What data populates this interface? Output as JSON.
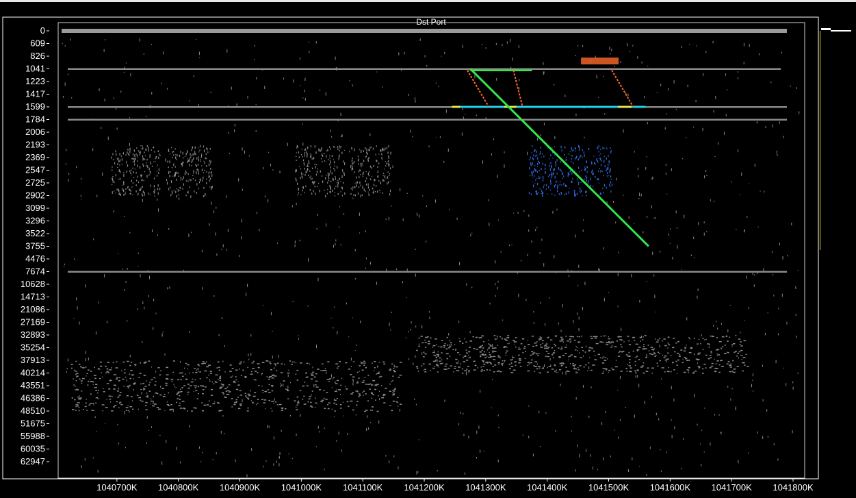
{
  "chart_data": {
    "type": "scatter",
    "title": "Dst Port",
    "xlabel": "",
    "ylabel": "",
    "x_ticks": [
      "1040700K",
      "1040800K",
      "1040900K",
      "1041000K",
      "1041100K",
      "1041200K",
      "1041300K",
      "1041400K",
      "1041500K",
      "1041600K",
      "1041700K",
      "1041800K"
    ],
    "xlim": [
      1040610,
      1041810
    ],
    "y_ticks": [
      "0",
      "609",
      "826",
      "1041",
      "1223",
      "1417",
      "1599",
      "1784",
      "2006",
      "2193",
      "2369",
      "2547",
      "2725",
      "2902",
      "3099",
      "3296",
      "3522",
      "3755",
      "4476",
      "7674",
      "10628",
      "14713",
      "21086",
      "27169",
      "32893",
      "35254",
      "37913",
      "40214",
      "43551",
      "46386",
      "48510",
      "51675",
      "55988",
      "60035",
      "62947"
    ],
    "y_scale": "port-rank (non-linear tick labels)",
    "grid": false,
    "legend": "none",
    "colors": {
      "background": "#000000",
      "frame": "#ffffff",
      "scan_points": "#8c8c8c",
      "diagonal_sweep": "#33e64d",
      "highlight_block": "#2e6be6",
      "orange_marks": "#ff6a2a",
      "cyan_marks": "#22d3ee",
      "yellow_marks": "#e8e84a",
      "side_bar": "#e6d21e"
    },
    "features": [
      {
        "kind": "dense band",
        "color": "gray",
        "y": "0",
        "x_range": [
          1040610,
          1041790
        ]
      },
      {
        "kind": "horizontal line",
        "color": "gray",
        "y": "1041",
        "x_range": [
          1040620,
          1041780
        ]
      },
      {
        "kind": "horizontal line",
        "color": "gray/cyan/yellow",
        "y": "1599",
        "x_range": [
          1040620,
          1041790
        ]
      },
      {
        "kind": "horizontal line",
        "color": "gray",
        "y": "1784",
        "x_range": [
          1040620,
          1041790
        ]
      },
      {
        "kind": "horizontal line",
        "color": "gray",
        "y": "7674",
        "x_range": [
          1040620,
          1041790
        ]
      },
      {
        "kind": "scatter blocks",
        "color": "gray",
        "y_range": [
          "2193",
          "2902"
        ],
        "x_ranges": [
          [
            1040690,
            1040770
          ],
          [
            1040780,
            1040855
          ],
          [
            1040990,
            1041070
          ],
          [
            1041080,
            1041145
          ]
        ]
      },
      {
        "kind": "scatter block",
        "color": "blue",
        "y_range": [
          "2193",
          "2902"
        ],
        "x_range": [
          1041370,
          1041505
        ]
      },
      {
        "kind": "diagonal line",
        "color": "green",
        "from": {
          "x": 1041275,
          "y": "1041"
        },
        "to": {
          "x": 1041565,
          "y": "3755"
        }
      },
      {
        "kind": "scatter band",
        "color": "gray",
        "y_range": [
          "32893",
          "40214"
        ],
        "x_range": [
          1041185,
          1041725
        ]
      },
      {
        "kind": "scatter band",
        "color": "gray",
        "y_range": [
          "37913",
          "48510"
        ],
        "x_range": [
          1040625,
          1041160
        ]
      }
    ]
  }
}
